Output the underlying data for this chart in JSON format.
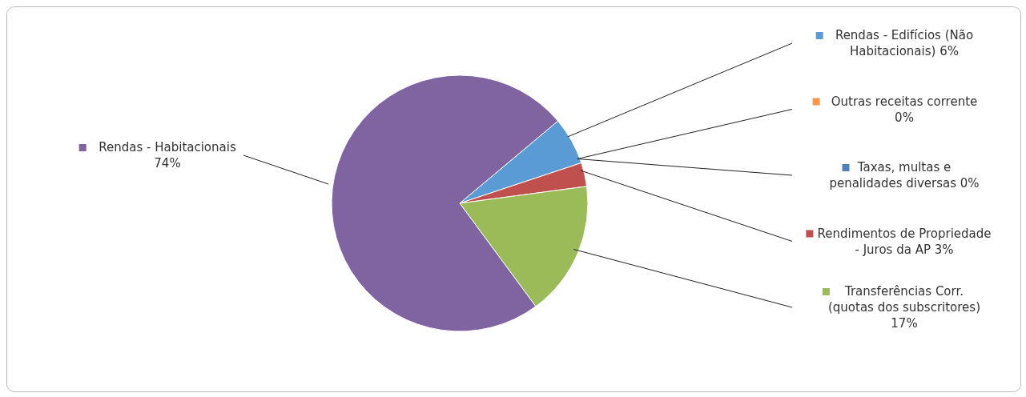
{
  "chart_data": {
    "type": "pie",
    "categories": [
      "Rendas - Edifícios (Não Habitacionais)",
      "Outras receitas corrente",
      "Taxas, multas e penalidades diversas",
      "Rendimentos de Propriedade - Juros da AP",
      "Transferências  Corr. (quotas dos subscritores)",
      "Rendas -  Habitacionais"
    ],
    "values": [
      6,
      0,
      0,
      3,
      17,
      74
    ],
    "value_labels": [
      "6%",
      "0%",
      "0%",
      "3%",
      "17%",
      "74%"
    ],
    "colors": [
      "#5b9bd5",
      "#f79646",
      "#4f81bd",
      "#c0504d",
      "#9bbb59",
      "#8064a2"
    ],
    "legend": "right"
  }
}
